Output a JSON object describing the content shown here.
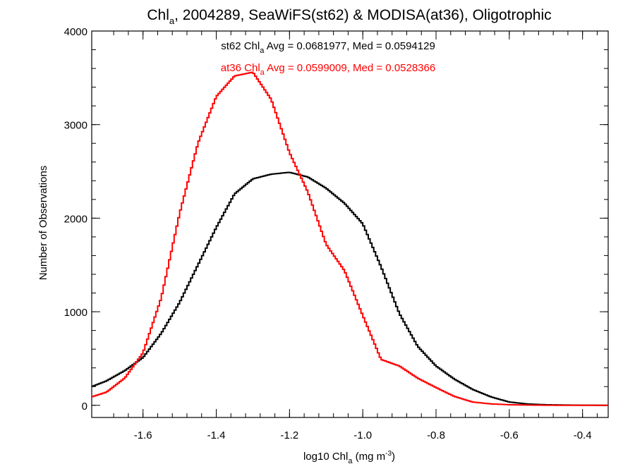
{
  "chart_data": {
    "type": "line",
    "title": {
      "prefix": "Chl",
      "sub": "a",
      "rest": ", 2004289, SeaWiFS(st62) & MODISA(at36), Oligotrophic"
    },
    "xlabel": {
      "prefix": "log10 Chl",
      "sub": "a",
      "mid": " (mg m",
      "sup": "-3",
      "end": ")"
    },
    "ylabel": "Number of Observations",
    "xlim": [
      -1.74,
      -0.33
    ],
    "ylim": [
      -130,
      4000
    ],
    "xticks": [
      -1.6,
      -1.4,
      -1.2,
      -1.0,
      -0.8,
      -0.6,
      -0.4
    ],
    "xtick_labels": [
      "-1.6",
      "-1.4",
      "-1.2",
      "-1.0",
      "-0.8",
      "-0.6",
      "-0.4"
    ],
    "yticks": [
      0,
      1000,
      2000,
      3000,
      4000
    ],
    "ytick_labels": [
      "0",
      "1000",
      "2000",
      "3000",
      "4000"
    ],
    "grid": false,
    "series": [
      {
        "color": "#000000",
        "annotation": {
          "prefix": "st62 Chl",
          "sub": "a",
          "rest": " Avg = 0.0681977, Med = 0.0594129"
        },
        "x": [
          -1.74,
          -1.7,
          -1.65,
          -1.6,
          -1.55,
          -1.5,
          -1.45,
          -1.4,
          -1.35,
          -1.3,
          -1.25,
          -1.2,
          -1.15,
          -1.1,
          -1.05,
          -1.0,
          -0.95,
          -0.9,
          -0.85,
          -0.8,
          -0.75,
          -0.7,
          -0.65,
          -0.6,
          -0.55,
          -0.5,
          -0.45,
          -0.4,
          -0.33
        ],
        "y": [
          200,
          260,
          370,
          510,
          770,
          1100,
          1500,
          1900,
          2260,
          2420,
          2470,
          2490,
          2440,
          2320,
          2160,
          1940,
          1480,
          980,
          630,
          420,
          280,
          170,
          90,
          35,
          14,
          6,
          3,
          1,
          0
        ]
      },
      {
        "color": "#ff0000",
        "annotation": {
          "prefix": "at36 Chl",
          "sub": "a",
          "rest": " Avg = 0.0599009, Med = 0.0528366"
        },
        "x": [
          -1.74,
          -1.7,
          -1.65,
          -1.6,
          -1.55,
          -1.5,
          -1.45,
          -1.4,
          -1.35,
          -1.3,
          -1.25,
          -1.2,
          -1.15,
          -1.1,
          -1.05,
          -1.0,
          -0.95,
          -0.9,
          -0.85,
          -0.8,
          -0.75,
          -0.7,
          -0.65,
          -0.6,
          -0.55,
          -0.5,
          -0.45,
          -0.4,
          -0.33
        ],
        "y": [
          90,
          140,
          290,
          560,
          1150,
          2050,
          2800,
          3300,
          3520,
          3560,
          3270,
          2700,
          2280,
          1720,
          1440,
          960,
          490,
          420,
          290,
          190,
          95,
          35,
          15,
          6,
          3,
          1,
          0,
          0,
          0
        ]
      }
    ]
  }
}
